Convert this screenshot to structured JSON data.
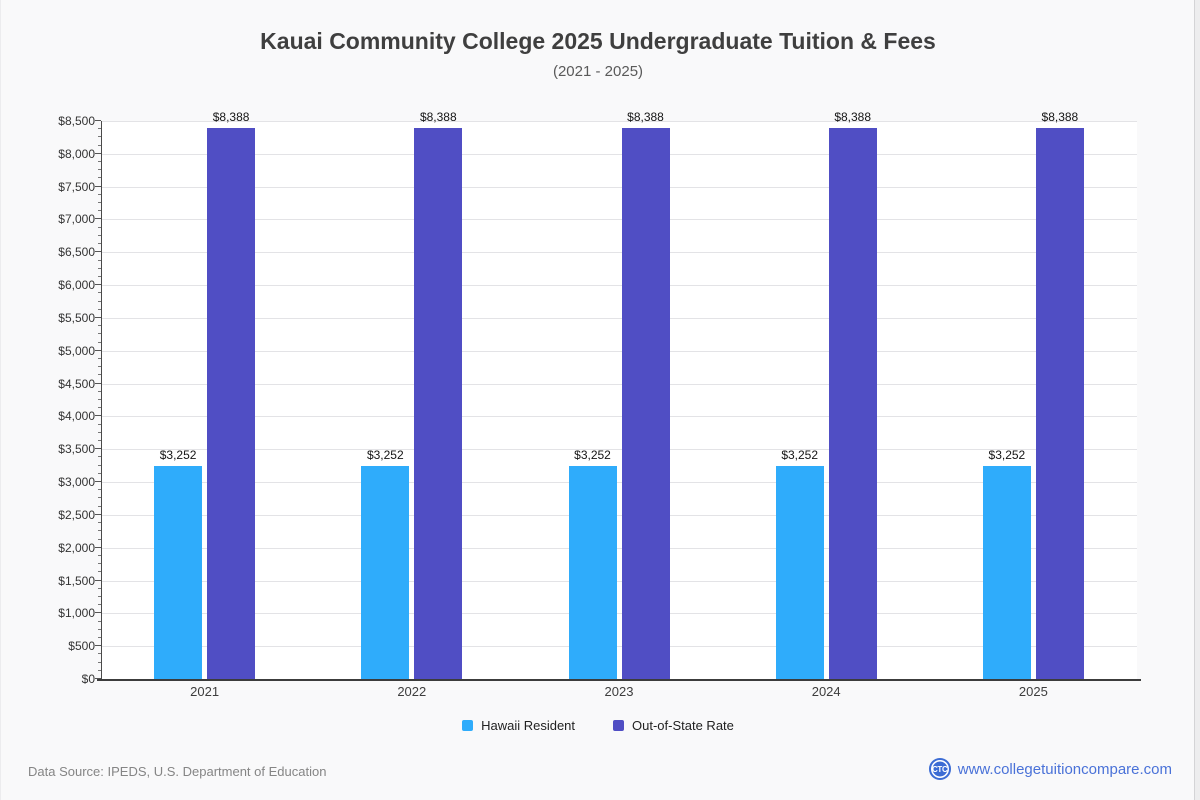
{
  "page": {
    "title": "Kauai Community College 2025 Undergraduate Tuition & Fees",
    "subtitle": "(2021 - 2025)",
    "footer": {
      "data_source": "Data Source: IPEDS, U.S. Department of Education",
      "website": "www.collegetuitioncompare.com",
      "logo_text": "CTC"
    }
  },
  "chart_data": {
    "type": "bar",
    "title": "Kauai Community College 2025 Undergraduate Tuition & Fees",
    "subtitle": "(2021 - 2025)",
    "categories": [
      "2021",
      "2022",
      "2023",
      "2024",
      "2025"
    ],
    "series": [
      {
        "name": "Hawaii Resident",
        "color": "#2FACFB",
        "values": [
          3252,
          3252,
          3252,
          3252,
          3252
        ],
        "labels": [
          "$3,252",
          "$3,252",
          "$3,252",
          "$3,252",
          "$3,252"
        ]
      },
      {
        "name": "Out-of-State Rate",
        "color": "#504EC4",
        "values": [
          8388,
          8388,
          8388,
          8388,
          8388
        ],
        "labels": [
          "$8,388",
          "$8,388",
          "$8,388",
          "$8,388",
          "$8,388"
        ]
      }
    ],
    "ylim": [
      0,
      8500
    ],
    "y_major_step": 500,
    "y_minor_step": 125,
    "y_tick_labels": [
      "$0",
      "$500",
      "$1,000",
      "$1,500",
      "$2,000",
      "$2,500",
      "$3,000",
      "$3,500",
      "$4,000",
      "$4,500",
      "$5,000",
      "$5,500",
      "$6,000",
      "$6,500",
      "$7,000",
      "$7,500",
      "$8,000",
      "$8,500"
    ],
    "xlabel": "",
    "ylabel": "",
    "grid": true,
    "legend_position": "bottom"
  },
  "colors": {
    "page_background": "#f9f9fa",
    "plot_background": "#ffffff",
    "gridline": "#e3e3e6",
    "axis": "#3c3c3c",
    "hawaii_resident": "#2FACFB",
    "out_of_state": "#504EC4",
    "brand_blue": "#4a72d8"
  }
}
